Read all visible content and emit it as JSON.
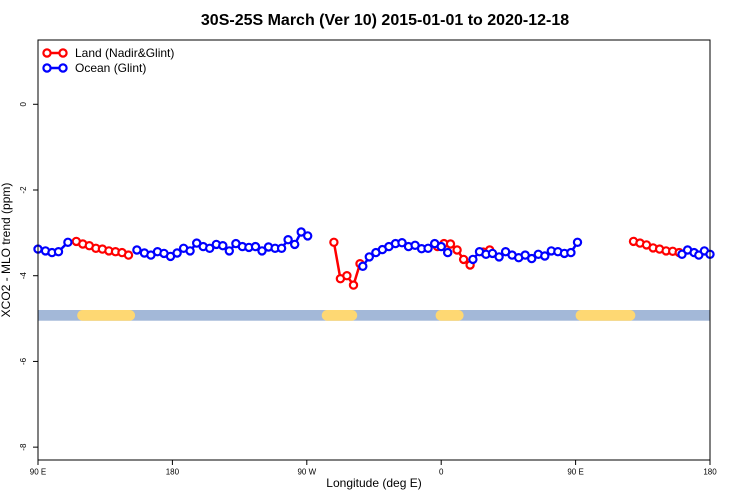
{
  "chart_data": {
    "type": "line",
    "title": "30S-25S March (Ver 10)   2015-01-01 to 2020-12-18",
    "xlabel": "Longitude (deg E)",
    "ylabel": "XCO2 - MLO trend (ppm)",
    "xlim": [
      90,
      450
    ],
    "ylim": [
      -8.3,
      1.5
    ],
    "x_ticks": [
      {
        "value": 90,
        "label": "90 E"
      },
      {
        "value": 162,
        "label": "180"
      },
      {
        "value": 234,
        "label": "90 W"
      },
      {
        "value": 306,
        "label": "0"
      },
      {
        "value": 378,
        "label": "90 E"
      },
      {
        "value": 450,
        "label": "180"
      }
    ],
    "y_ticks": [
      0,
      -2,
      -4,
      -6,
      -8
    ],
    "legend": {
      "position": "top-left"
    },
    "surface_band": {
      "y_range": [
        -5.05,
        -4.8
      ],
      "ocean_color": "#a3b8d8",
      "land_color": "#fed873",
      "land_segments": [
        [
          111,
          142
        ],
        [
          242,
          261
        ],
        [
          303,
          318
        ],
        [
          378,
          410
        ]
      ]
    },
    "series": [
      {
        "name": "Land (Nadir&Glint)",
        "color": "#ff0000",
        "points": [
          [
            110.5,
            -3.2
          ],
          [
            114.0,
            -3.26
          ],
          [
            117.5,
            -3.3
          ],
          [
            121.0,
            -3.36
          ],
          [
            124.5,
            -3.38
          ],
          [
            128.0,
            -3.42
          ],
          [
            131.5,
            -3.44
          ],
          [
            135.0,
            -3.46
          ],
          [
            138.5,
            -3.52
          ],
          [
            248.5,
            -3.22
          ],
          [
            252.0,
            -4.07
          ],
          [
            255.5,
            -4.0
          ],
          [
            259.0,
            -4.22
          ],
          [
            262.5,
            -3.72
          ],
          [
            304.0,
            -3.32
          ],
          [
            307.5,
            -3.25
          ],
          [
            311.0,
            -3.26
          ],
          [
            314.5,
            -3.4
          ],
          [
            318.0,
            -3.62
          ],
          [
            321.5,
            -3.75
          ],
          [
            328.5,
            -3.45
          ],
          [
            332.0,
            -3.4
          ],
          [
            409.0,
            -3.2
          ],
          [
            412.5,
            -3.24
          ],
          [
            416.0,
            -3.28
          ],
          [
            419.5,
            -3.35
          ],
          [
            423.0,
            -3.38
          ],
          [
            426.5,
            -3.42
          ],
          [
            430.0,
            -3.43
          ],
          [
            433.5,
            -3.46
          ]
        ]
      },
      {
        "name": "Ocean (Glint)",
        "color": "#0000ff",
        "segments": [
          [
            [
              90.0,
              -3.38
            ],
            [
              94.0,
              -3.42
            ],
            [
              97.5,
              -3.46
            ],
            [
              101.0,
              -3.44
            ],
            [
              106.0,
              -3.22
            ]
          ],
          [
            [
              143.0,
              -3.4
            ],
            [
              147.0,
              -3.47
            ],
            [
              150.5,
              -3.52
            ],
            [
              154.0,
              -3.44
            ],
            [
              157.5,
              -3.48
            ],
            [
              161.0,
              -3.55
            ],
            [
              164.5,
              -3.47
            ],
            [
              168.0,
              -3.36
            ],
            [
              171.5,
              -3.42
            ],
            [
              175.0,
              -3.24
            ],
            [
              178.5,
              -3.32
            ],
            [
              182.0,
              -3.36
            ],
            [
              185.5,
              -3.27
            ],
            [
              189.0,
              -3.3
            ],
            [
              192.5,
              -3.42
            ],
            [
              196.0,
              -3.25
            ],
            [
              199.5,
              -3.32
            ],
            [
              203.0,
              -3.34
            ],
            [
              206.5,
              -3.32
            ],
            [
              210.0,
              -3.42
            ],
            [
              213.5,
              -3.33
            ],
            [
              217.0,
              -3.36
            ],
            [
              220.5,
              -3.36
            ],
            [
              224.0,
              -3.16
            ],
            [
              227.5,
              -3.27
            ],
            [
              231.0,
              -2.98
            ],
            [
              234.5,
              -3.07
            ]
          ],
          [
            [
              264.0,
              -3.78
            ],
            [
              267.5,
              -3.56
            ],
            [
              271.0,
              -3.46
            ],
            [
              274.5,
              -3.39
            ],
            [
              278.0,
              -3.32
            ],
            [
              281.5,
              -3.25
            ],
            [
              285.0,
              -3.23
            ],
            [
              288.5,
              -3.32
            ],
            [
              292.0,
              -3.29
            ],
            [
              295.5,
              -3.37
            ],
            [
              299.0,
              -3.36
            ],
            [
              302.5,
              -3.25
            ],
            [
              306.0,
              -3.32
            ],
            [
              309.5,
              -3.46
            ]
          ],
          [
            [
              323.0,
              -3.62
            ],
            [
              326.5,
              -3.44
            ],
            [
              330.0,
              -3.5
            ],
            [
              333.5,
              -3.48
            ],
            [
              337.0,
              -3.56
            ],
            [
              340.5,
              -3.44
            ],
            [
              344.0,
              -3.52
            ],
            [
              347.5,
              -3.58
            ],
            [
              351.0,
              -3.52
            ],
            [
              354.5,
              -3.6
            ],
            [
              358.0,
              -3.5
            ],
            [
              361.5,
              -3.54
            ],
            [
              365.0,
              -3.42
            ],
            [
              368.5,
              -3.44
            ],
            [
              372.0,
              -3.48
            ],
            [
              375.5,
              -3.46
            ],
            [
              379.0,
              -3.22
            ]
          ],
          [
            [
              435.0,
              -3.5
            ],
            [
              438.0,
              -3.4
            ],
            [
              441.5,
              -3.46
            ],
            [
              444.0,
              -3.52
            ],
            [
              447.0,
              -3.42
            ],
            [
              450.0,
              -3.5
            ]
          ]
        ]
      }
    ]
  }
}
